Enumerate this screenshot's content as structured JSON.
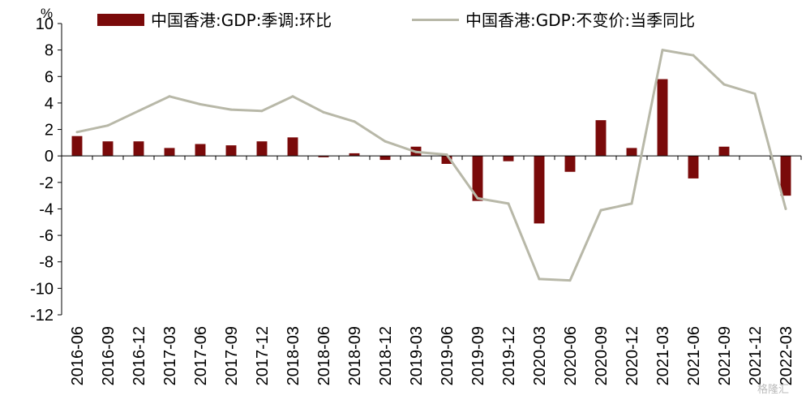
{
  "chart_data": {
    "type": "bar+line",
    "unit": "%",
    "ylim": [
      -12,
      10
    ],
    "yticks": [
      -12,
      -10,
      -8,
      -6,
      -4,
      -2,
      0,
      2,
      4,
      6,
      8,
      10
    ],
    "grid": false,
    "legend_position": "top",
    "categories": [
      "2016-06",
      "2016-09",
      "2016-12",
      "2017-03",
      "2017-06",
      "2017-09",
      "2017-12",
      "2018-03",
      "2018-06",
      "2018-09",
      "2018-12",
      "2019-03",
      "2019-06",
      "2019-09",
      "2019-12",
      "2020-03",
      "2020-06",
      "2020-09",
      "2020-12",
      "2021-03",
      "2021-06",
      "2021-09",
      "2021-12",
      "2022-03"
    ],
    "series": [
      {
        "name": "中国香港:GDP:季调:环比",
        "type": "bar",
        "color": "#7a0a0a",
        "values": [
          1.5,
          1.1,
          1.1,
          0.6,
          0.9,
          0.8,
          1.1,
          1.4,
          -0.1,
          0.2,
          -0.3,
          0.7,
          -0.6,
          -3.4,
          -0.4,
          -5.1,
          -1.2,
          2.7,
          0.6,
          5.8,
          -1.7,
          0.7,
          0.0,
          -3.0
        ]
      },
      {
        "name": "中国香港:GDP:不变价:当季同比",
        "type": "line",
        "color": "#b8b8a8",
        "values": [
          1.8,
          2.3,
          3.4,
          4.5,
          3.9,
          3.5,
          3.4,
          4.5,
          3.3,
          2.6,
          1.1,
          0.3,
          0.1,
          -3.2,
          -3.6,
          -9.3,
          -9.4,
          -4.1,
          -3.6,
          8.0,
          7.6,
          5.4,
          4.7,
          -4.0
        ]
      }
    ]
  },
  "watermark": "格隆汇"
}
